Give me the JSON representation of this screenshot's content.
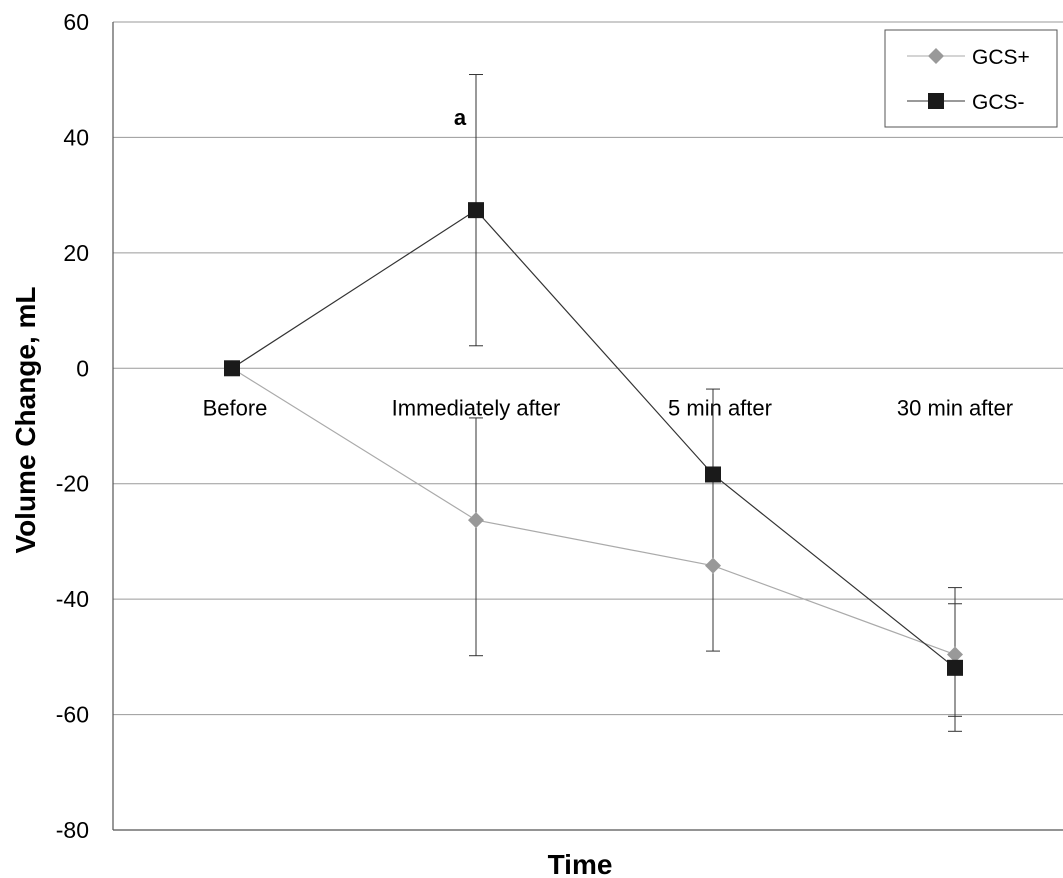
{
  "chart_data": {
    "type": "line",
    "xlabel": "Time",
    "ylabel": "Volume Change, mL",
    "categories": [
      "Before",
      "Immediately after",
      "5 min after",
      "30 min after"
    ],
    "ylim": [
      -80,
      60
    ],
    "yticks": [
      60,
      40,
      20,
      0,
      -20,
      -40,
      -60,
      -80
    ],
    "grid": true,
    "legend_position": "top-right",
    "series": [
      {
        "name": "GCS+",
        "marker": "diamond",
        "color": "#999999",
        "values": [
          0,
          -26.3,
          -34.2,
          -49.6
        ],
        "error_low": [
          null,
          -49.8,
          -49,
          -60.3
        ],
        "error_high": [
          null,
          -8.6,
          -3.6,
          -38
        ]
      },
      {
        "name": "GCS-",
        "marker": "square",
        "color": "#1a1a1a",
        "values": [
          0,
          27.4,
          -18.4,
          -51.9
        ],
        "error_low": [
          null,
          3.9,
          null,
          -62.9
        ],
        "error_high": [
          null,
          50.9,
          null,
          -40.8
        ]
      }
    ],
    "annotations": [
      {
        "text": "a",
        "category": "Immediately after",
        "y": 43.5
      }
    ]
  }
}
